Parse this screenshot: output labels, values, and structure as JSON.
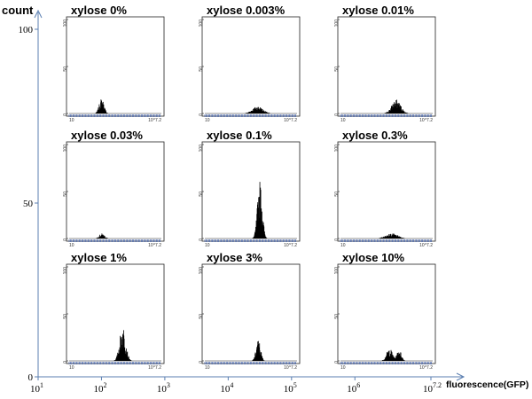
{
  "chart_data": {
    "type": "bar",
    "ylabel": "count",
    "xlabel": "fluorescence(GFP)",
    "ylim": [
      0,
      100
    ],
    "y_ticks": [
      "0",
      "50",
      "100"
    ],
    "x_ticks": [
      {
        "base": "10",
        "exp": "1"
      },
      {
        "base": "10",
        "exp": "2"
      },
      {
        "base": "10",
        "exp": "3"
      },
      {
        "base": "10",
        "exp": "4"
      },
      {
        "base": "10",
        "exp": "5"
      },
      {
        "base": "10",
        "exp": "6"
      },
      {
        "base": "10",
        "exp": "7.2"
      }
    ],
    "mini_y_ticks": [
      "0",
      "50",
      "100"
    ],
    "mini_x_ticks": [
      "10",
      "",
      "",
      "",
      "",
      "",
      "10^7.2"
    ],
    "grid": false,
    "panels": [
      {
        "title": "xylose 0%",
        "peaks": [
          {
            "center": 3.18,
            "width": 0.16,
            "height": 12
          }
        ]
      },
      {
        "title": "xylose 0.003%",
        "peaks": [
          {
            "center": 4.55,
            "width": 0.35,
            "height": 6
          }
        ]
      },
      {
        "title": "xylose 0.01%",
        "peaks": [
          {
            "center": 4.75,
            "width": 0.3,
            "height": 11
          }
        ]
      },
      {
        "title": "xylose 0.03%",
        "peaks": [
          {
            "center": 3.2,
            "width": 0.18,
            "height": 4
          }
        ]
      },
      {
        "title": "xylose 0.1%",
        "peaks": [
          {
            "center": 4.7,
            "width": 0.16,
            "height": 46
          }
        ]
      },
      {
        "title": "xylose 0.3%",
        "peaks": [
          {
            "center": 4.45,
            "width": 0.4,
            "height": 4
          }
        ]
      },
      {
        "title": "xylose 1%",
        "peaks": [
          {
            "center": 4.6,
            "width": 0.2,
            "height": 28
          }
        ]
      },
      {
        "title": "xylose 3%",
        "peaks": [
          {
            "center": 4.6,
            "width": 0.15,
            "height": 17
          }
        ]
      },
      {
        "title": "xylose 10%",
        "peaks": [
          {
            "center": 4.3,
            "width": 0.2,
            "height": 10
          },
          {
            "center": 4.95,
            "width": 0.15,
            "height": 9
          }
        ]
      }
    ]
  }
}
